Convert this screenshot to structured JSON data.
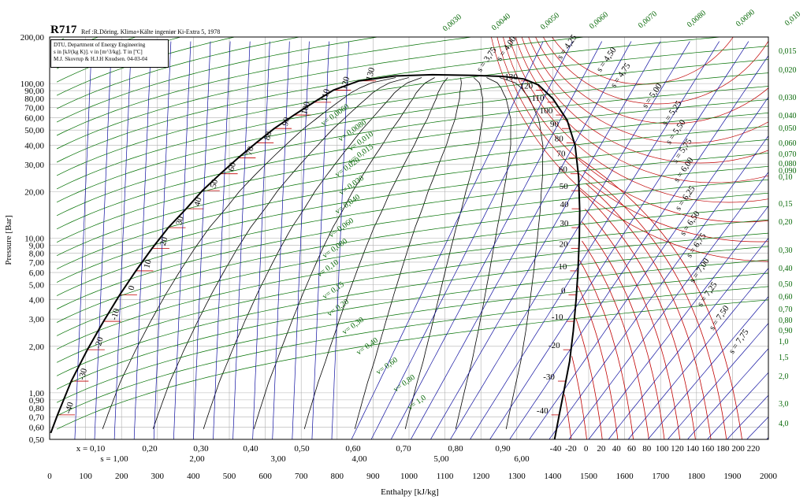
{
  "chart_data": {
    "type": "line",
    "title": "R717",
    "reference": "Ref :R.Döring. Klima+Kälte ingeniør Ki-Extra 5, 1978",
    "info_lines": [
      "DTU, Department of Energy Engineering",
      "s in [kJ/(kg K)]. v in [m^3/kg]. T in [ºC]",
      "M.J. Skovrup & H.J.H Knudsen. 04-03-04"
    ],
    "xlabel": "Enthalpy [kJ/kg]",
    "ylabel": "Pressure [Bar]",
    "xlim": [
      0,
      2000
    ],
    "ylim": [
      0.5,
      200
    ],
    "yscale": "log",
    "x_ticks": [
      "0",
      "100",
      "200",
      "300",
      "400",
      "500",
      "600",
      "700",
      "800",
      "900",
      "1000",
      "1100",
      "1200",
      "1300",
      "1400",
      "1500",
      "1600",
      "1700",
      "1800",
      "1900",
      "2000"
    ],
    "y_ticks": [
      "0,50",
      "0,60",
      "0,70",
      "0,80",
      "0,90",
      "1,00",
      "2,00",
      "3,00",
      "4,00",
      "5,00",
      "6,00",
      "7,00",
      "8,00",
      "9,00",
      "10,00",
      "20,00",
      "30,00",
      "40,00",
      "50,00",
      "60,00",
      "70,00",
      "80,00",
      "90,00",
      "100,00",
      "200,00"
    ],
    "quality_labels": [
      "x = 0,10",
      "0,20",
      "0,30",
      "0,40",
      "0,50",
      "0,60",
      "0,70",
      "0,80",
      "0,90"
    ],
    "entropy_axis_labels": [
      "s = 1,00",
      "2,00",
      "3,00",
      "4,00",
      "5,00",
      "6,00"
    ],
    "bottom_temp_labels": [
      "-40",
      "-20",
      "0",
      "20",
      "40",
      "60",
      "80",
      "100",
      "120",
      "140",
      "160",
      "180",
      "200",
      "220"
    ],
    "right_volume_labels": [
      "0,015",
      "0,020",
      "0,030",
      "0,040",
      "0,050",
      "0,060",
      "0,070",
      "0,080",
      "0,090",
      "0,10",
      "0,15",
      "0,20",
      "0,30",
      "0,40",
      "0,50",
      "0,60",
      "0,70",
      "0,80",
      "0,90",
      "1,0",
      "1,5",
      "2,0",
      "3,0",
      "4,0"
    ],
    "top_volume_labels": [
      "0,0030",
      "0,0040",
      "0,0050",
      "0,0060",
      "0,0070",
      "0,0080",
      "0,0090",
      "0,010"
    ],
    "liquid_temp_labels": [
      "-40",
      "-30",
      "-20",
      "-10",
      "0",
      "10",
      "20",
      "30",
      "40",
      "50",
      "60",
      "70",
      "80",
      "90",
      "100",
      "110",
      "120",
      "130"
    ],
    "vapor_temp_labels": [
      "-40",
      "-30",
      "-20",
      "-10",
      "0",
      "10",
      "20",
      "30",
      "40",
      "50",
      "60",
      "70",
      "80",
      "90",
      "100",
      "110",
      "120",
      "130"
    ],
    "volume_curve_labels": [
      "v= 0,0060",
      "v= 0,0080",
      "v= 0,010",
      "v= 0,015",
      "v= 0,020",
      "v= 0,030",
      "v= 0,040",
      "v= 0,060",
      "v= 0,080",
      "v= 0,10",
      "v= 0,15",
      "v= 0,20",
      "v= 0,30",
      "v= 0,40",
      "v= 0,60",
      "v= 0,80",
      "v= 1,0"
    ],
    "entropy_curve_labels": [
      "s = 3,75",
      "s = 4,00",
      "s = 4,25",
      "s = 4,50",
      "s = 4,75",
      "s = 5,00",
      "s = 5,25",
      "s = 5,50",
      "s = 5,75",
      "s = 6,00",
      "s = 6,25",
      "s = 6,50",
      "s = 6,75",
      "s = 7,00",
      "s = 7,25",
      "s = 7,50",
      "s = 7,75"
    ],
    "saturation": {
      "liquid": [
        [
          3,
          0.55
        ],
        [
          22,
          0.72
        ],
        [
          60,
          1.19
        ],
        [
          105,
          1.9
        ],
        [
          150,
          2.9
        ],
        [
          195,
          4.3
        ],
        [
          240,
          6.15
        ],
        [
          285,
          8.6
        ],
        [
          330,
          11.7
        ],
        [
          380,
          15.5
        ],
        [
          425,
          20.3
        ],
        [
          475,
          26.1
        ],
        [
          525,
          33.1
        ],
        [
          575,
          41.4
        ],
        [
          625,
          51.2
        ],
        [
          680,
          62.6
        ],
        [
          735,
          75.7
        ],
        [
          790,
          90.7
        ],
        [
          860,
          104
        ],
        [
          960,
          112
        ],
        [
          1065,
          114
        ]
      ],
      "vapor": [
        [
          1065,
          114
        ],
        [
          1180,
          113
        ],
        [
          1265,
          111
        ],
        [
          1320,
          107
        ],
        [
          1360,
          98
        ],
        [
          1400,
          80
        ],
        [
          1440,
          58
        ],
        [
          1462,
          40
        ],
        [
          1472,
          25
        ],
        [
          1475,
          15
        ],
        [
          1474,
          10
        ],
        [
          1470,
          6
        ],
        [
          1465,
          4
        ],
        [
          1457,
          2.5
        ],
        [
          1447,
          1.6
        ],
        [
          1430,
          1
        ],
        [
          1418,
          0.72
        ],
        [
          1405,
          0.5
        ]
      ]
    },
    "colors": {
      "saturation": "#000000",
      "quality": "#000000",
      "temperature": "#c00000",
      "volume": "#007000",
      "entropy": "#1010a0",
      "grid": "#b0b0b0"
    },
    "grid": true
  }
}
